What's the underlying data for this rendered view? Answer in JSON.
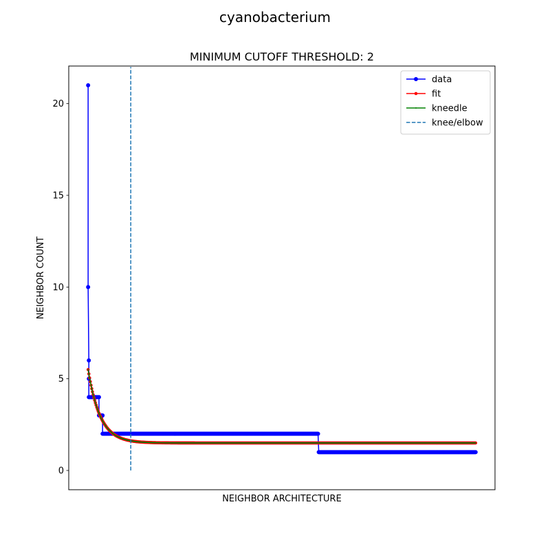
{
  "figure": {
    "suptitle": "cyanobacterium"
  },
  "chart_data": {
    "type": "line",
    "title": "MINIMUM CUTOFF THRESHOLD: 2",
    "xlabel": "NEIGHBOR ARCHITECTURE",
    "ylabel": "NEIGHBOR COUNT",
    "xticks_visible": false,
    "ylim": [
      -1.05,
      22.05
    ],
    "xlim": [
      -26.8,
      562.8
    ],
    "yticks": [
      0,
      5,
      10,
      15,
      20
    ],
    "grid": false,
    "legend": {
      "placement": "upper right",
      "entries": [
        {
          "label": "data",
          "color": "#0000ff",
          "style": "solid-circle"
        },
        {
          "label": "fit",
          "color": "#ff0000",
          "style": "solid-point"
        },
        {
          "label": "kneedle",
          "color": "#008000",
          "style": "solid-pixel"
        },
        {
          "label": "knee/elbow",
          "color": "#1f77b4",
          "style": "dashed"
        }
      ]
    },
    "series": [
      {
        "name": "data",
        "color": "#0000ff",
        "step_segments": [
          {
            "x_start": 0,
            "x_end": 0,
            "y": 21
          },
          {
            "x_start": 0,
            "x_end": 0,
            "y": 10
          },
          {
            "x_start": 1,
            "x_end": 1,
            "y": 6
          },
          {
            "x_start": 1,
            "x_end": 1,
            "y": 5
          },
          {
            "x_start": 1,
            "x_end": 15,
            "y": 4
          },
          {
            "x_start": 15,
            "x_end": 20,
            "y": 3
          },
          {
            "x_start": 20,
            "x_end": 318,
            "y": 2
          },
          {
            "x_start": 319,
            "x_end": 536,
            "y": 1
          }
        ]
      },
      {
        "name": "fit",
        "color": "#ff0000",
        "model": {
          "form": "a*exp(-b*x)+c",
          "a": 4.0,
          "b": 0.06,
          "c": 1.5,
          "x_start": 0,
          "x_end": 536
        }
      },
      {
        "name": "kneedle",
        "color": "#008000",
        "model": {
          "form": "a*exp(-b*x)+c",
          "a": 4.0,
          "b": 0.06,
          "c": 1.5,
          "x_start": 0,
          "x_end": 536
        }
      }
    ],
    "knee": {
      "name": "knee/elbow",
      "x": 59,
      "y_from": 0,
      "y_to": 22,
      "color": "#1f77b4"
    }
  }
}
